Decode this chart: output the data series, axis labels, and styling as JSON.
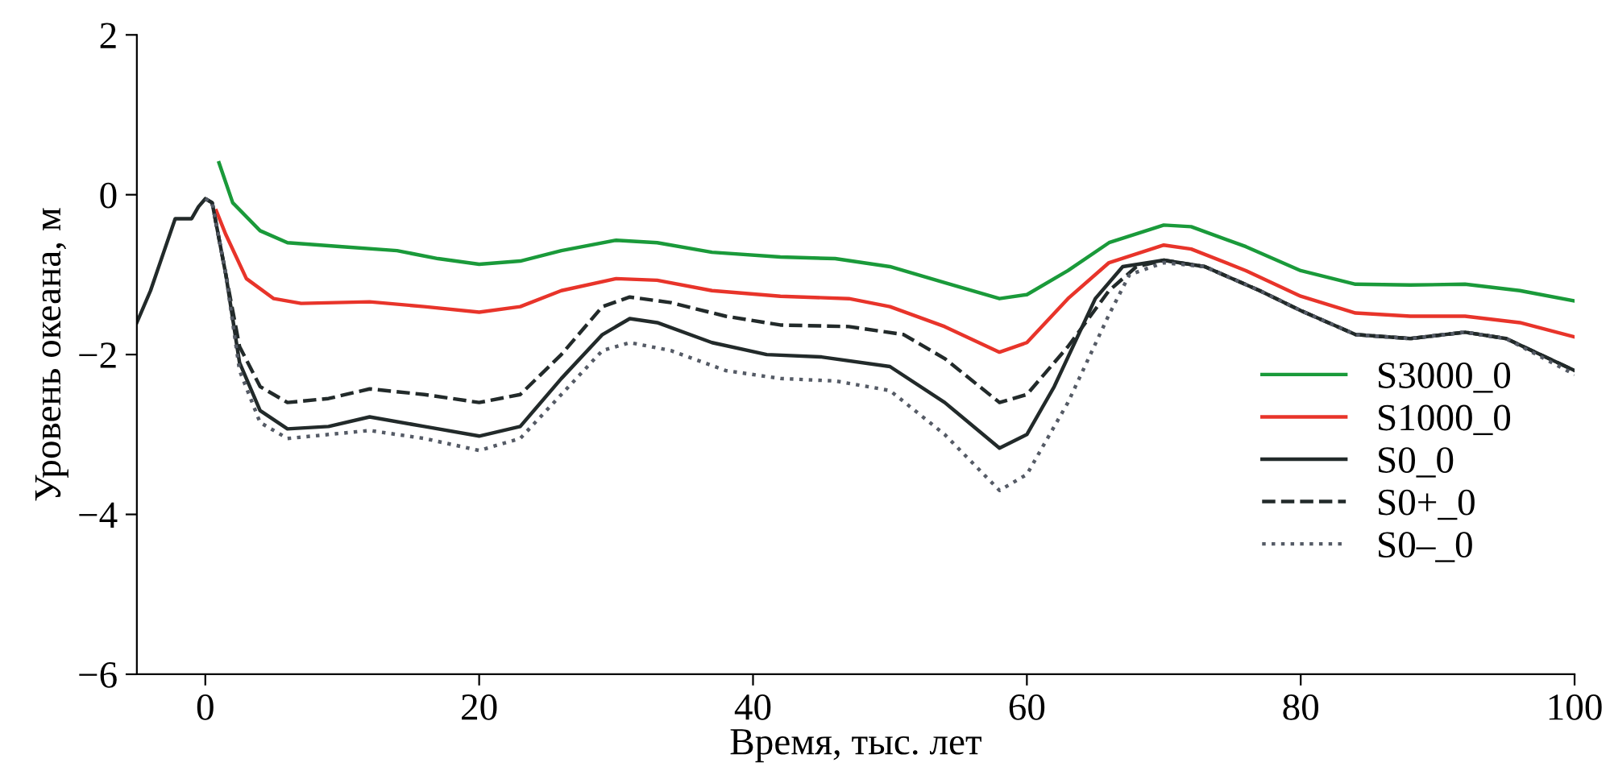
{
  "chart_data": {
    "type": "line",
    "xlabel": "Время, тыс. лет",
    "ylabel": "Уровень океана, м",
    "xlim": [
      -5,
      100
    ],
    "ylim": [
      -6,
      2
    ],
    "xticks": [
      0,
      20,
      40,
      60,
      80,
      100
    ],
    "yticks": [
      -6,
      -4,
      -2,
      0,
      2
    ],
    "grid": false,
    "legend": "right",
    "marker": "none",
    "series": [
      {
        "name": "S3000_0",
        "color": "#1a9a3a",
        "line_style": "solid",
        "x": [
          1,
          2,
          4,
          6,
          10,
          14,
          17,
          20,
          23,
          26,
          30,
          33,
          37,
          42,
          46,
          50,
          54,
          58,
          60,
          63,
          66,
          70,
          72,
          76,
          80,
          84,
          88,
          92,
          96,
          100
        ],
        "values": [
          0.4,
          -0.1,
          -0.45,
          -0.6,
          -0.65,
          -0.7,
          -0.8,
          -0.87,
          -0.83,
          -0.7,
          -0.57,
          -0.6,
          -0.72,
          -0.78,
          -0.8,
          -0.9,
          -1.1,
          -1.3,
          -1.25,
          -0.95,
          -0.6,
          -0.38,
          -0.4,
          -0.65,
          -0.95,
          -1.12,
          -1.13,
          -1.12,
          -1.2,
          -1.33
        ]
      },
      {
        "name": "S1000_0",
        "color": "#e8342a",
        "line_style": "solid",
        "x": [
          0.8,
          1.5,
          3,
          5,
          7,
          12,
          16,
          20,
          23,
          26,
          30,
          33,
          37,
          42,
          47,
          50,
          54,
          58,
          60,
          63,
          66,
          70,
          72,
          76,
          80,
          84,
          88,
          92,
          96,
          100
        ],
        "values": [
          -0.2,
          -0.5,
          -1.05,
          -1.3,
          -1.36,
          -1.34,
          -1.4,
          -1.47,
          -1.4,
          -1.2,
          -1.05,
          -1.07,
          -1.2,
          -1.27,
          -1.3,
          -1.4,
          -1.65,
          -1.97,
          -1.85,
          -1.3,
          -0.85,
          -0.63,
          -0.68,
          -0.95,
          -1.27,
          -1.48,
          -1.52,
          -1.52,
          -1.6,
          -1.78
        ]
      },
      {
        "name": "S0_0",
        "color": "#222a2a",
        "line_style": "solid",
        "x": [
          -5,
          -4,
          -3,
          -2.2,
          -1.5,
          -1,
          -0.5,
          0,
          0.5,
          1.5,
          2.5,
          4,
          6,
          9,
          12,
          16,
          20,
          23,
          26,
          29,
          31,
          33,
          37,
          41,
          45,
          50,
          54,
          58,
          60,
          62,
          65,
          67,
          70,
          73,
          77,
          80,
          84,
          88,
          92,
          95,
          100
        ],
        "values": [
          -1.6,
          -1.2,
          -0.7,
          -0.3,
          -0.3,
          -0.3,
          -0.15,
          -0.05,
          -0.1,
          -1.0,
          -2.1,
          -2.7,
          -2.93,
          -2.9,
          -2.78,
          -2.9,
          -3.02,
          -2.9,
          -2.3,
          -1.75,
          -1.55,
          -1.6,
          -1.85,
          -2.0,
          -2.03,
          -2.15,
          -2.6,
          -3.17,
          -3.0,
          -2.4,
          -1.3,
          -0.9,
          -0.82,
          -0.9,
          -1.2,
          -1.45,
          -1.75,
          -1.8,
          -1.72,
          -1.8,
          -2.2
        ]
      },
      {
        "name": "S0+_0",
        "color": "#222a2a",
        "line_style": "dashed",
        "x": [
          0,
          0.5,
          1.5,
          2.5,
          4,
          6,
          9,
          12,
          16,
          20,
          23,
          26,
          29,
          31,
          34,
          38,
          42,
          47,
          51,
          54,
          58,
          60,
          63,
          66,
          68,
          70,
          73,
          77,
          80,
          84,
          88,
          92,
          95,
          100
        ],
        "values": [
          -0.05,
          -0.1,
          -1.0,
          -1.9,
          -2.4,
          -2.6,
          -2.55,
          -2.43,
          -2.5,
          -2.6,
          -2.5,
          -2.0,
          -1.4,
          -1.28,
          -1.35,
          -1.52,
          -1.63,
          -1.65,
          -1.75,
          -2.05,
          -2.6,
          -2.5,
          -1.9,
          -1.2,
          -0.9,
          -0.82,
          -0.9,
          -1.2,
          -1.45,
          -1.75,
          -1.8,
          -1.72,
          -1.8,
          -2.2
        ]
      },
      {
        "name": "S0–_0",
        "color": "#555b66",
        "line_style": "dotted",
        "x": [
          0,
          0.5,
          1.5,
          2.5,
          4,
          6,
          9,
          12,
          16,
          20,
          23,
          26,
          29,
          31,
          34,
          38,
          42,
          46,
          50,
          54,
          58,
          60,
          63,
          66,
          67.5,
          70,
          73,
          77,
          80,
          84,
          88,
          92,
          95,
          100
        ],
        "values": [
          -0.05,
          -0.1,
          -1.0,
          -2.2,
          -2.85,
          -3.05,
          -3.0,
          -2.95,
          -3.05,
          -3.2,
          -3.05,
          -2.5,
          -1.95,
          -1.85,
          -1.95,
          -2.2,
          -2.3,
          -2.33,
          -2.45,
          -3.0,
          -3.7,
          -3.5,
          -2.6,
          -1.5,
          -1.0,
          -0.85,
          -0.9,
          -1.2,
          -1.45,
          -1.75,
          -1.8,
          -1.72,
          -1.8,
          -2.25
        ]
      }
    ]
  }
}
